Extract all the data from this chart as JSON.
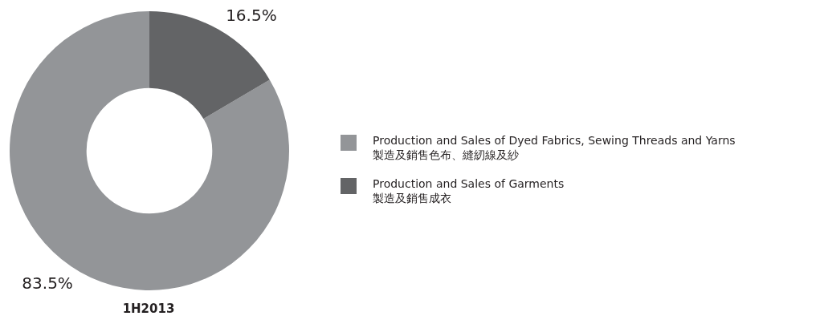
{
  "chart_data": {
    "type": "donut",
    "title": "1H2013",
    "categories": [
      "Production and Sales of Dyed Fabrics, Sewing Threads and Yarns\n製造及銷售色布、縫紉線及紗",
      "Production and Sales of Garments\n製造及銷售成衣"
    ],
    "values": [
      83.5,
      16.5
    ],
    "colors": [
      "#939598",
      "#636466"
    ],
    "value_labels": [
      "83.5%",
      "16.5%"
    ],
    "legend": "right"
  }
}
